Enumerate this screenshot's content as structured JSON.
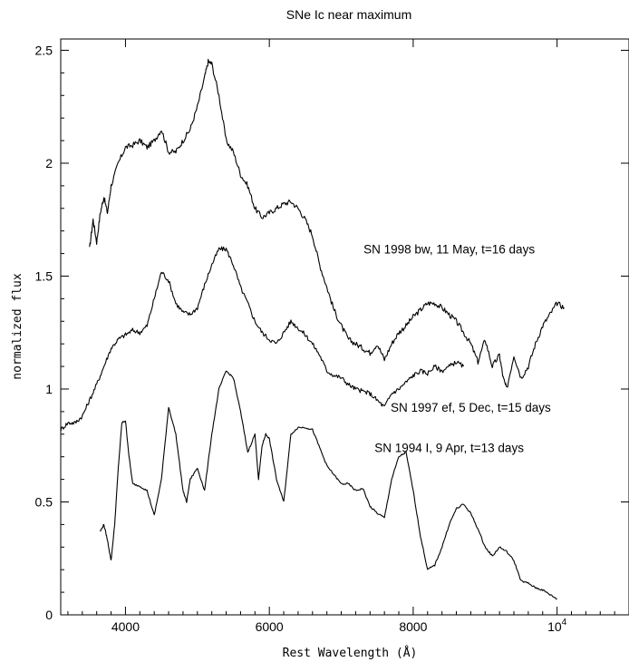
{
  "chart_data": {
    "type": "line",
    "title": "SNe Ic near maximum",
    "xlabel": "Rest Wavelength (Å)",
    "ylabel": "normalized flux",
    "xlim": [
      3100,
      11000
    ],
    "ylim": [
      0,
      2.55
    ],
    "grid": false,
    "x_ticks": [
      {
        "value": 4000,
        "label": "4000"
      },
      {
        "value": 6000,
        "label": "6000"
      },
      {
        "value": 8000,
        "label": "8000"
      },
      {
        "value": 10000,
        "label": "10",
        "sup": "4"
      }
    ],
    "y_ticks": [
      {
        "value": 0,
        "label": "0"
      },
      {
        "value": 0.5,
        "label": "0.5"
      },
      {
        "value": 1,
        "label": "1"
      },
      {
        "value": 1.5,
        "label": "1.5"
      },
      {
        "value": 2,
        "label": "2"
      },
      {
        "value": 2.5,
        "label": "2.5"
      }
    ],
    "annotations": [
      {
        "text": "SN 1998 bw, 11 May, t=16 days",
        "x": 8500,
        "y": 1.6
      },
      {
        "text": "SN 1997 ef, 5 Dec, t=15 days",
        "x": 8800,
        "y": 0.9
      },
      {
        "text": "SN 1994 I, 9 Apr, t=13 days",
        "x": 8500,
        "y": 0.72
      }
    ],
    "series": [
      {
        "name": "SN 1998 bw, 11 May, t=16 days",
        "x": [
          3500,
          3550,
          3600,
          3650,
          3700,
          3750,
          3800,
          3900,
          4000,
          4100,
          4200,
          4300,
          4400,
          4500,
          4600,
          4700,
          4800,
          4900,
          5000,
          5100,
          5150,
          5200,
          5300,
          5400,
          5500,
          5600,
          5700,
          5800,
          5900,
          6000,
          6100,
          6200,
          6300,
          6400,
          6500,
          6600,
          6700,
          6800,
          6900,
          7000,
          7100,
          7200,
          7300,
          7400,
          7500,
          7600,
          7700,
          7800,
          7900,
          8000,
          8100,
          8200,
          8300,
          8400,
          8500,
          8600,
          8700,
          8800,
          8900,
          9000,
          9100,
          9200,
          9250,
          9300,
          9400,
          9500,
          9600,
          9700,
          9800,
          9900,
          10000,
          10100
        ],
        "y": [
          1.62,
          1.75,
          1.65,
          1.78,
          1.85,
          1.78,
          1.9,
          2.0,
          2.07,
          2.08,
          2.1,
          2.07,
          2.1,
          2.15,
          2.05,
          2.05,
          2.1,
          2.15,
          2.25,
          2.38,
          2.45,
          2.44,
          2.3,
          2.1,
          2.05,
          1.95,
          1.9,
          1.8,
          1.76,
          1.78,
          1.8,
          1.82,
          1.83,
          1.8,
          1.75,
          1.68,
          1.55,
          1.45,
          1.35,
          1.28,
          1.22,
          1.2,
          1.18,
          1.16,
          1.2,
          1.13,
          1.2,
          1.25,
          1.28,
          1.32,
          1.35,
          1.38,
          1.38,
          1.36,
          1.33,
          1.3,
          1.25,
          1.2,
          1.12,
          1.22,
          1.1,
          1.15,
          1.05,
          1.0,
          1.15,
          1.05,
          1.1,
          1.2,
          1.28,
          1.33,
          1.38,
          1.36
        ]
      },
      {
        "name": "SN 1997 ef, 5 Dec, t=15 days",
        "x": [
          3100,
          3200,
          3300,
          3400,
          3500,
          3600,
          3700,
          3800,
          3900,
          4000,
          4100,
          4200,
          4300,
          4400,
          4500,
          4600,
          4700,
          4800,
          4900,
          5000,
          5100,
          5200,
          5300,
          5400,
          5500,
          5600,
          5700,
          5800,
          5900,
          6000,
          6100,
          6200,
          6300,
          6400,
          6500,
          6600,
          6700,
          6800,
          6900,
          7000,
          7100,
          7200,
          7300,
          7400,
          7500,
          7600,
          7700,
          7800,
          7900,
          8000,
          8100,
          8200,
          8300,
          8400,
          8500,
          8600,
          8700
        ],
        "y": [
          0.82,
          0.85,
          0.85,
          0.88,
          0.95,
          1.02,
          1.1,
          1.18,
          1.22,
          1.24,
          1.26,
          1.25,
          1.28,
          1.4,
          1.52,
          1.48,
          1.38,
          1.34,
          1.33,
          1.36,
          1.46,
          1.55,
          1.62,
          1.62,
          1.55,
          1.45,
          1.38,
          1.3,
          1.25,
          1.22,
          1.2,
          1.25,
          1.3,
          1.27,
          1.24,
          1.2,
          1.15,
          1.08,
          1.06,
          1.05,
          1.02,
          1.0,
          0.99,
          0.98,
          0.95,
          0.92,
          0.98,
          1.0,
          1.03,
          1.06,
          1.08,
          1.07,
          1.1,
          1.08,
          1.1,
          1.12,
          1.1
        ]
      },
      {
        "name": "SN 1994 I, 9 Apr, t=13 days",
        "x": [
          3650,
          3700,
          3750,
          3800,
          3850,
          3900,
          3950,
          4000,
          4050,
          4100,
          4200,
          4300,
          4400,
          4500,
          4600,
          4700,
          4800,
          4850,
          4900,
          5000,
          5100,
          5200,
          5300,
          5400,
          5500,
          5600,
          5700,
          5800,
          5850,
          5900,
          5950,
          6000,
          6100,
          6200,
          6300,
          6400,
          6500,
          6600,
          6700,
          6800,
          6900,
          7000,
          7100,
          7200,
          7300,
          7400,
          7500,
          7600,
          7700,
          7800,
          7900,
          8000,
          8100,
          8200,
          8300,
          8400,
          8500,
          8600,
          8700,
          8800,
          8900,
          9000,
          9100,
          9200,
          9300,
          9400,
          9500,
          9600,
          9700,
          9800,
          9900,
          10000
        ],
        "y": [
          0.37,
          0.4,
          0.33,
          0.24,
          0.4,
          0.65,
          0.85,
          0.86,
          0.7,
          0.58,
          0.57,
          0.55,
          0.44,
          0.6,
          0.92,
          0.8,
          0.55,
          0.5,
          0.6,
          0.65,
          0.55,
          0.8,
          1.0,
          1.08,
          1.05,
          0.9,
          0.72,
          0.8,
          0.6,
          0.75,
          0.8,
          0.78,
          0.6,
          0.5,
          0.8,
          0.83,
          0.83,
          0.82,
          0.74,
          0.66,
          0.62,
          0.58,
          0.58,
          0.55,
          0.56,
          0.48,
          0.45,
          0.43,
          0.6,
          0.7,
          0.72,
          0.55,
          0.35,
          0.2,
          0.22,
          0.3,
          0.4,
          0.47,
          0.49,
          0.45,
          0.38,
          0.3,
          0.26,
          0.3,
          0.28,
          0.24,
          0.15,
          0.14,
          0.12,
          0.11,
          0.09,
          0.07
        ]
      }
    ]
  }
}
